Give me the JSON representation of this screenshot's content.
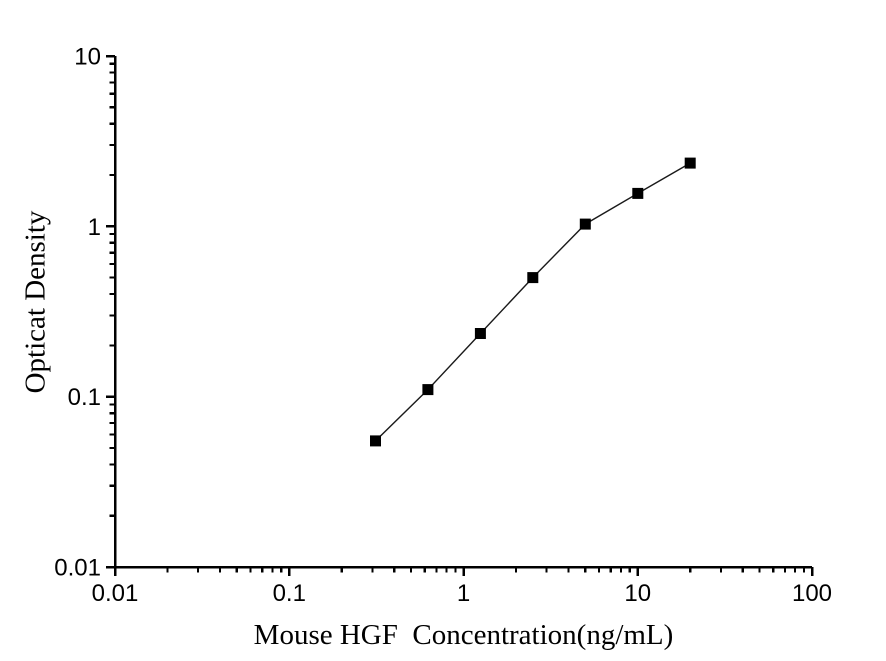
{
  "figure": {
    "background": "#ffffff",
    "axis_color": "#000000",
    "text_color": "#000000"
  },
  "chart_data": {
    "type": "line",
    "title": "",
    "xlabel": "Mouse HGF  Concentration(ng/mL)",
    "ylabel": "Opticat Density",
    "x_scale": "log",
    "y_scale": "log",
    "xlim": [
      0.01,
      100
    ],
    "ylim": [
      0.01,
      10
    ],
    "x_ticks": {
      "values": [
        0.01,
        0.1,
        1,
        10,
        100
      ],
      "labels": [
        "0.01",
        "0.1",
        "1",
        "10",
        "100"
      ]
    },
    "y_ticks": {
      "values": [
        0.01,
        0.1,
        1,
        10
      ],
      "labels": [
        "0.01",
        "0.1",
        "1",
        "10"
      ]
    },
    "minor_ticks": "log-subdivisions-2-to-9",
    "grid": false,
    "legend": null,
    "series": [
      {
        "marker": "filled-square",
        "marker_color": "#000000",
        "line_color": "#1a1a1a",
        "x": [
          0.3125,
          0.625,
          1.25,
          2.5,
          5,
          10,
          20
        ],
        "y": [
          0.055,
          0.11,
          0.235,
          0.5,
          1.03,
          1.56,
          2.35
        ]
      }
    ]
  }
}
